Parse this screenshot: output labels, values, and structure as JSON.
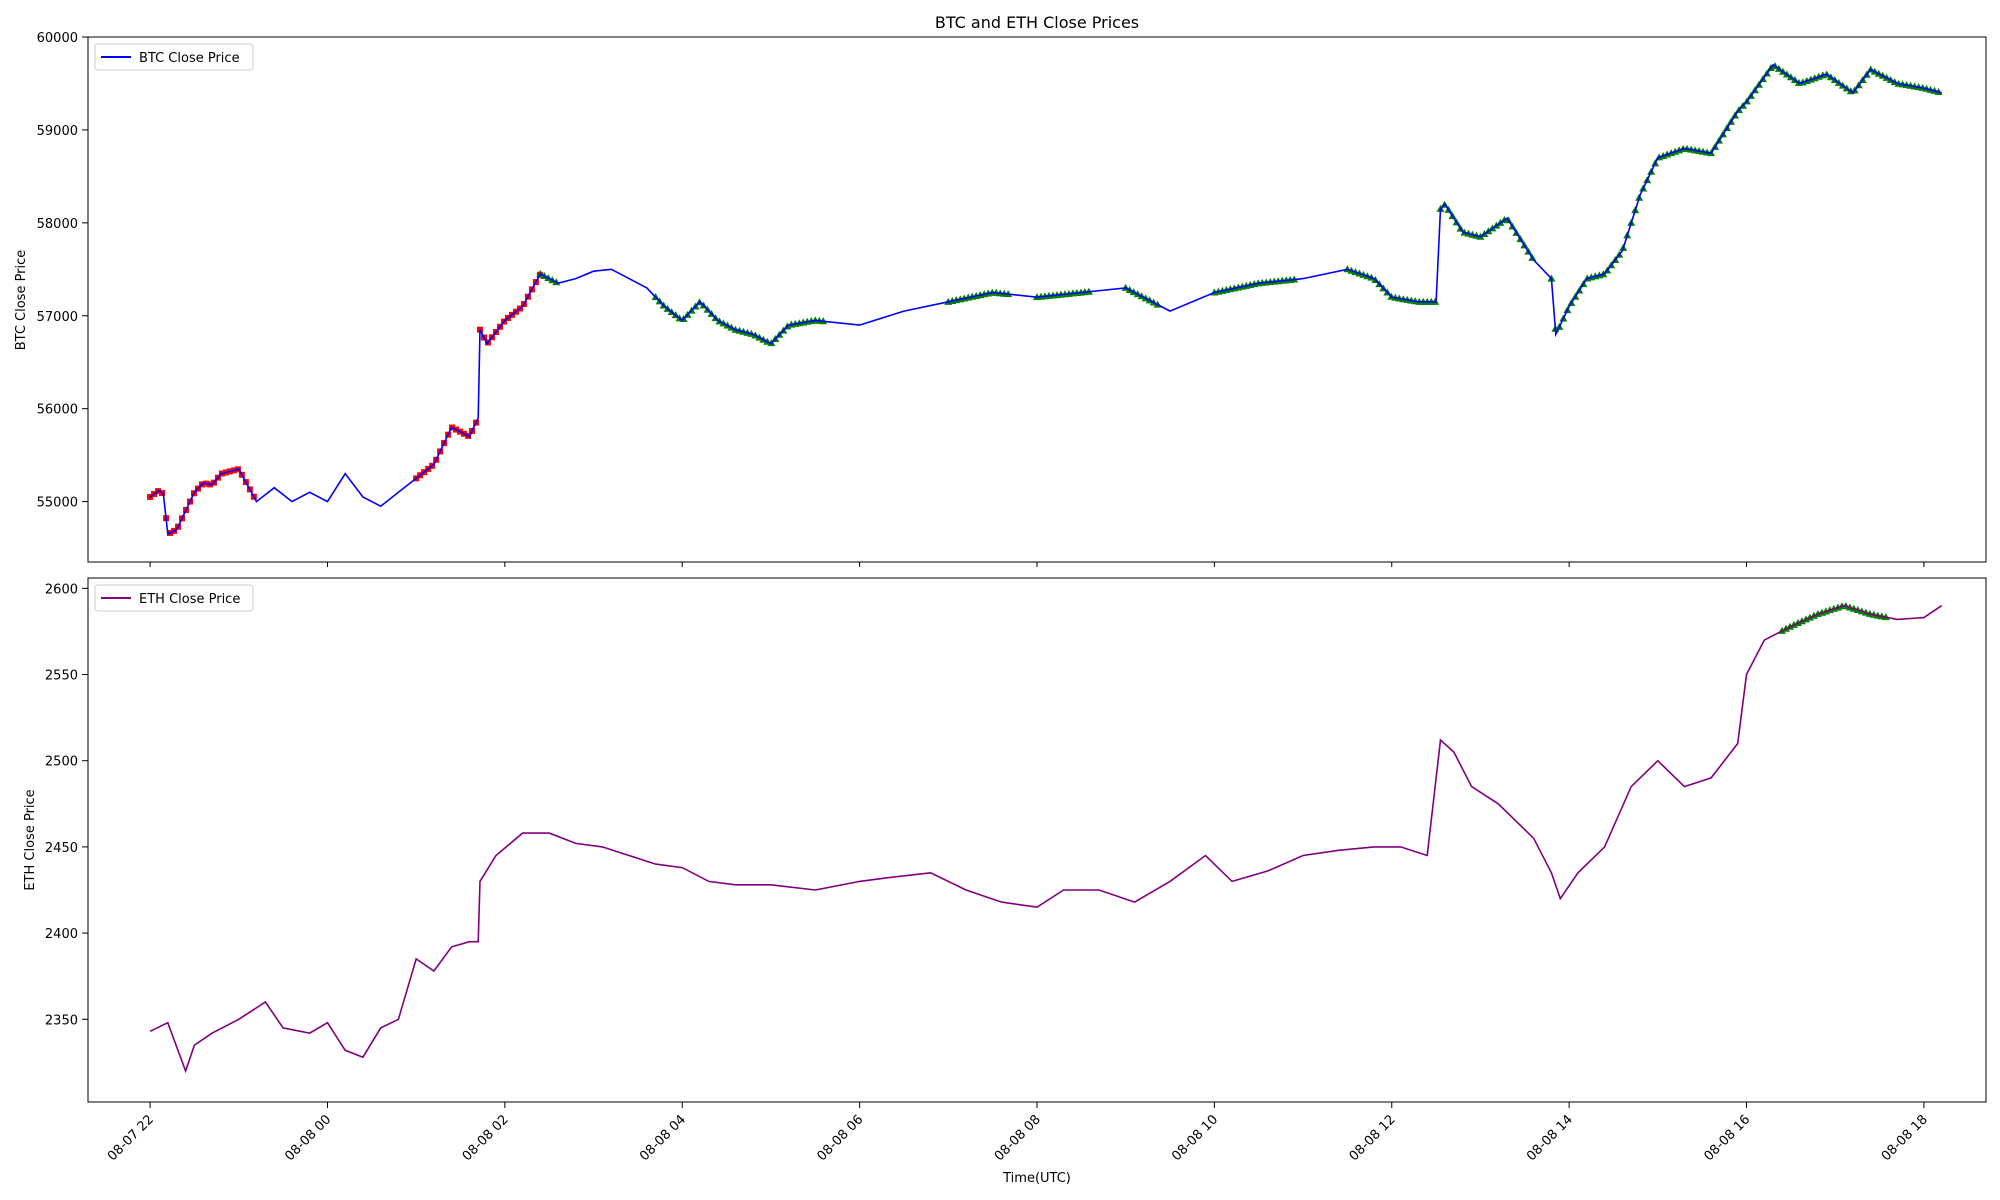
{
  "chart_data": [
    {
      "type": "line",
      "title": "BTC and ETH Close Prices",
      "xlabel": "",
      "ylabel": "BTC Close Price",
      "ylim": [
        54350,
        60000
      ],
      "yticks": [
        55000,
        56000,
        57000,
        58000,
        59000,
        60000
      ],
      "xlim_hours": [
        -2.7,
        18.7
      ],
      "grid": false,
      "legend_position": "upper-left",
      "series": [
        {
          "name": "BTC Close Price",
          "color": "#0000ff",
          "x_hours": [
            -2.0,
            -1.9,
            -1.85,
            -1.8,
            -1.7,
            -1.6,
            -1.5,
            -1.4,
            -1.3,
            -1.2,
            -1.0,
            -0.8,
            -0.6,
            -0.4,
            -0.2,
            0.0,
            0.2,
            0.4,
            0.6,
            0.8,
            1.0,
            1.2,
            1.4,
            1.6,
            1.7,
            1.72,
            1.8,
            2.0,
            2.2,
            2.4,
            2.6,
            2.8,
            3.0,
            3.2,
            3.4,
            3.6,
            3.8,
            4.0,
            4.2,
            4.4,
            4.6,
            4.8,
            5.0,
            5.2,
            5.5,
            6.0,
            6.5,
            7.0,
            7.5,
            8.0,
            8.5,
            9.0,
            9.5,
            10.0,
            10.5,
            11.0,
            11.5,
            11.8,
            12.0,
            12.3,
            12.5,
            12.55,
            12.6,
            12.8,
            13.0,
            13.3,
            13.6,
            13.8,
            13.85,
            14.0,
            14.2,
            14.4,
            14.6,
            14.8,
            15.0,
            15.3,
            15.6,
            15.9,
            16.0,
            16.3,
            16.6,
            16.9,
            17.2,
            17.4,
            17.7,
            18.0,
            18.2
          ],
          "values": [
            55050,
            55120,
            55080,
            54650,
            54700,
            54900,
            55100,
            55200,
            55180,
            55300,
            55350,
            55000,
            55150,
            55000,
            55100,
            55000,
            55300,
            55050,
            54950,
            55100,
            55250,
            55400,
            55800,
            55700,
            55900,
            56850,
            56700,
            56950,
            57100,
            57450,
            57350,
            57400,
            57480,
            57500,
            57400,
            57300,
            57100,
            56950,
            57150,
            56950,
            56850,
            56800,
            56700,
            56900,
            56950,
            56900,
            57050,
            57150,
            57250,
            57200,
            57250,
            57300,
            57050,
            57250,
            57350,
            57400,
            57500,
            57400,
            57200,
            57150,
            57150,
            58150,
            58200,
            57900,
            57850,
            58050,
            57600,
            57400,
            56800,
            57100,
            57400,
            57450,
            57700,
            58300,
            58700,
            58800,
            58750,
            59200,
            59300,
            59700,
            59500,
            59600,
            59400,
            59650,
            59500,
            59450,
            59400
          ]
        }
      ]
    },
    {
      "type": "line",
      "xlabel": "Time(UTC)",
      "ylabel": "ETH Close Price",
      "ylim": [
        2302,
        2606
      ],
      "yticks": [
        2350,
        2400,
        2450,
        2500,
        2550,
        2600
      ],
      "xticks": [
        "08-07 22",
        "08-08 00",
        "08-08 02",
        "08-08 04",
        "08-08 06",
        "08-08 08",
        "08-08 10",
        "08-08 12",
        "08-08 14",
        "08-08 16",
        "08-08 18"
      ],
      "grid": false,
      "legend_position": "upper-left",
      "series": [
        {
          "name": "ETH Close Price",
          "color": "#800080",
          "x_hours": [
            -2.0,
            -1.8,
            -1.6,
            -1.5,
            -1.3,
            -1.0,
            -0.7,
            -0.5,
            -0.2,
            0.0,
            0.2,
            0.4,
            0.6,
            0.8,
            1.0,
            1.2,
            1.4,
            1.6,
            1.7,
            1.72,
            1.9,
            2.2,
            2.5,
            2.8,
            3.1,
            3.4,
            3.7,
            4.0,
            4.3,
            4.6,
            5.0,
            5.5,
            6.0,
            6.3,
            6.8,
            7.2,
            7.6,
            8.0,
            8.3,
            8.7,
            9.1,
            9.5,
            9.9,
            10.2,
            10.6,
            11.0,
            11.4,
            11.8,
            12.1,
            12.4,
            12.55,
            12.7,
            12.9,
            13.2,
            13.6,
            13.8,
            13.9,
            14.1,
            14.4,
            14.7,
            15.0,
            15.3,
            15.6,
            15.9,
            16.0,
            16.2,
            16.5,
            16.8,
            17.1,
            17.4,
            17.7,
            18.0,
            18.2
          ],
          "values": [
            2343,
            2348,
            2320,
            2335,
            2342,
            2350,
            2360,
            2345,
            2342,
            2348,
            2332,
            2328,
            2345,
            2350,
            2385,
            2378,
            2392,
            2395,
            2395,
            2430,
            2445,
            2458,
            2458,
            2452,
            2450,
            2445,
            2440,
            2438,
            2430,
            2428,
            2428,
            2425,
            2430,
            2432,
            2435,
            2425,
            2418,
            2415,
            2425,
            2425,
            2418,
            2430,
            2445,
            2430,
            2436,
            2445,
            2448,
            2450,
            2450,
            2445,
            2512,
            2505,
            2485,
            2475,
            2455,
            2435,
            2420,
            2435,
            2450,
            2485,
            2500,
            2485,
            2490,
            2510,
            2550,
            2570,
            2578,
            2585,
            2590,
            2585,
            2582,
            2583,
            2590
          ]
        }
      ]
    }
  ]
}
